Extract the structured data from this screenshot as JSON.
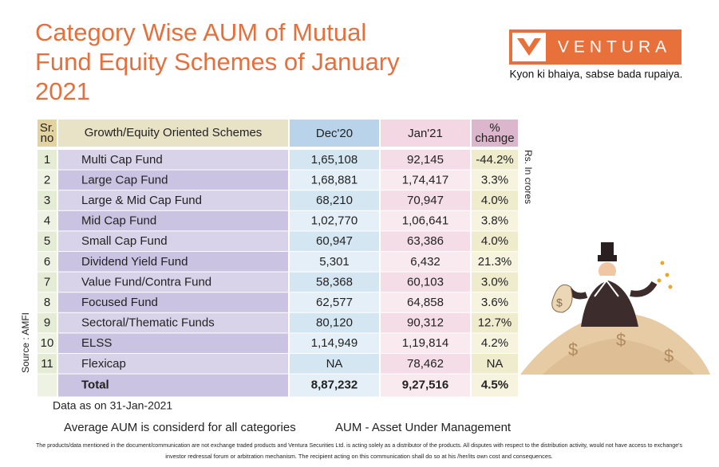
{
  "header": {
    "title": [
      "Category Wise AUM of Mutual",
      "Fund Equity Schemes of January",
      "2021"
    ],
    "brand": "VENTURA",
    "tagline": "Kyon ki bhaiya, sabse bada rupaiya."
  },
  "table": {
    "header": {
      "sr": [
        "Sr.",
        "no"
      ],
      "scheme": "Growth/Equity Oriented Schemes",
      "dec": "Dec'20",
      "jan": "Jan'21",
      "change": [
        "%",
        "change"
      ]
    },
    "rows": [
      [
        "1",
        "Multi Cap Fund",
        "1,65,108",
        "92,145",
        "-44.2%"
      ],
      [
        "2",
        "Large Cap Fund",
        "1,68,881",
        "1,74,417",
        "3.3%"
      ],
      [
        "3",
        "Large & Mid Cap Fund",
        "68,210",
        "70,947",
        "4.0%"
      ],
      [
        "4",
        "Mid Cap Fund",
        "1,02,770",
        "1,06,641",
        "3.8%"
      ],
      [
        "5",
        "Small Cap Fund",
        "60,947",
        "63,386",
        "4.0%"
      ],
      [
        "6",
        "Dividend Yield Fund",
        "5,301",
        "6,432",
        "21.3%"
      ],
      [
        "7",
        "Value Fund/Contra Fund",
        "58,368",
        "60,103",
        "3.0%"
      ],
      [
        "8",
        "Focused Fund",
        "62,577",
        "64,858",
        "3.6%"
      ],
      [
        "9",
        "Sectoral/Thematic Funds",
        "80,120",
        "90,312",
        "12.7%"
      ],
      [
        "10",
        "ELSS",
        "1,14,949",
        "1,19,814",
        "4.2%"
      ],
      [
        "11",
        "Flexicap",
        "NA",
        "78,462",
        "NA"
      ]
    ],
    "total": {
      "label": "Total",
      "values": [
        "8,87,232",
        "9,27,516",
        "4.5%"
      ]
    }
  },
  "side": {
    "unit": "Rs. In crores",
    "source": "Source : AMFI"
  },
  "notes": {
    "date": "Data as on 31-Jan-2021",
    "average": "Average AUM is considerd for all categories",
    "aum": "AUM - Asset Under Management"
  },
  "disclaimer": [
    "The products/data mentioned in the document/communication are not exchange traded products and Ventura Securities Ltd. is acting solely as a distributor of the products. All disputes with respect to the distribution activity, would not have access to exchange's",
    "investor redressal forum or arbitration mechanism. The recipient acting on this communication shall do so at his /her/its own cost and consequences."
  ]
}
